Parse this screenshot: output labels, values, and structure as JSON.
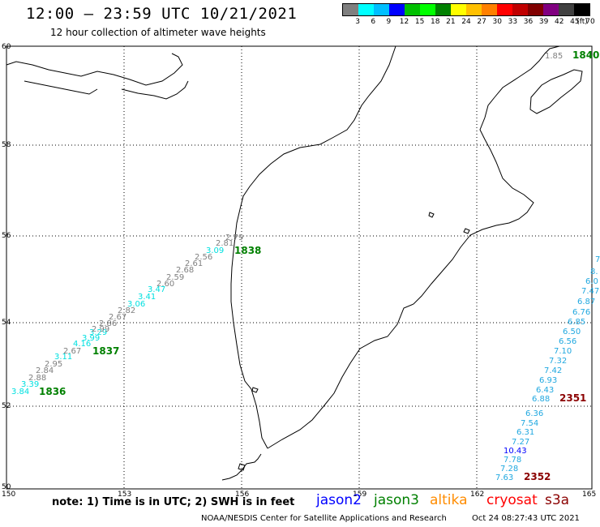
{
  "header": {
    "title": "12:00 – 23:59 UTC 10/21/2021",
    "subtitle": "12 hour collection of altimeter wave heights"
  },
  "scale": {
    "colors": [
      "#7f7f7f",
      "#00ffff",
      "#00bfff",
      "#0000ff",
      "#00c000",
      "#00ff00",
      "#008000",
      "#ffff00",
      "#ffc000",
      "#ff8000",
      "#ff0000",
      "#c00000",
      "#800000",
      "#800080",
      "#404040",
      "#000000"
    ],
    "labels": [
      "3",
      "6",
      "9",
      "12",
      "15",
      "18",
      "21",
      "24",
      "27",
      "30",
      "33",
      "36",
      "39",
      "42",
      "45",
      "70",
      "(ft)"
    ]
  },
  "axes": {
    "lat_labels": [
      "60",
      "58",
      "56",
      "54",
      "52",
      "50"
    ],
    "lon_labels": [
      "150",
      "153",
      "156",
      "159",
      "162",
      "165"
    ]
  },
  "colors": {
    "gray": "#7f7f7f",
    "cyan": "#00e0e0",
    "lightblue": "#20a8e0",
    "blue": "#0000ff",
    "green": "#008000",
    "darkred": "#8b0000"
  },
  "track_labels": {
    "t1836": "1836",
    "t1837": "1837",
    "t1838": "1838",
    "t1840": "1840",
    "t2351": "2351",
    "t2352": "2352"
  },
  "track1_values": [
    "3.84",
    "3.39",
    "2.84",
    "2.88",
    "2.95",
    "3.11",
    "2.67",
    "4.16",
    "3.99",
    "3.29",
    "2.99",
    "2.86",
    "2.67",
    "2.82",
    "3.06",
    "3.41",
    "3.47",
    "2.60",
    "2.59",
    "2.68",
    "2.61",
    "2.56",
    "3.09",
    "2.81",
    "2.79"
  ],
  "top_value": "1.85",
  "track2_values": [
    "7.",
    "8.",
    "6.0",
    "7.47",
    "6.87",
    "6.76",
    "6.85",
    "6.50",
    "6.56",
    "7.10",
    "7.32",
    "7.42",
    "6.93",
    "6.43",
    "6.88",
    "6.36",
    "7.54",
    "6.31",
    "7.27",
    "10.43",
    "7.78",
    "7.28",
    "7.63"
  ],
  "footer": {
    "note": "note:  1) Time is in UTC;  2) SWH is in feet",
    "legend": [
      {
        "name": "jason2",
        "color": "#0000ff"
      },
      {
        "name": "jason3",
        "color": "#008000"
      },
      {
        "name": "altika",
        "color": "#ff8c00"
      },
      {
        "name": "cryosat",
        "color": "#ff0000"
      },
      {
        "name": "s3a",
        "color": "#8b0000"
      }
    ],
    "credit": "NOAA/NESDIS Center for Satellite Applications and Research",
    "timestamp": "Oct 24 08:27:43 UTC 2021"
  }
}
